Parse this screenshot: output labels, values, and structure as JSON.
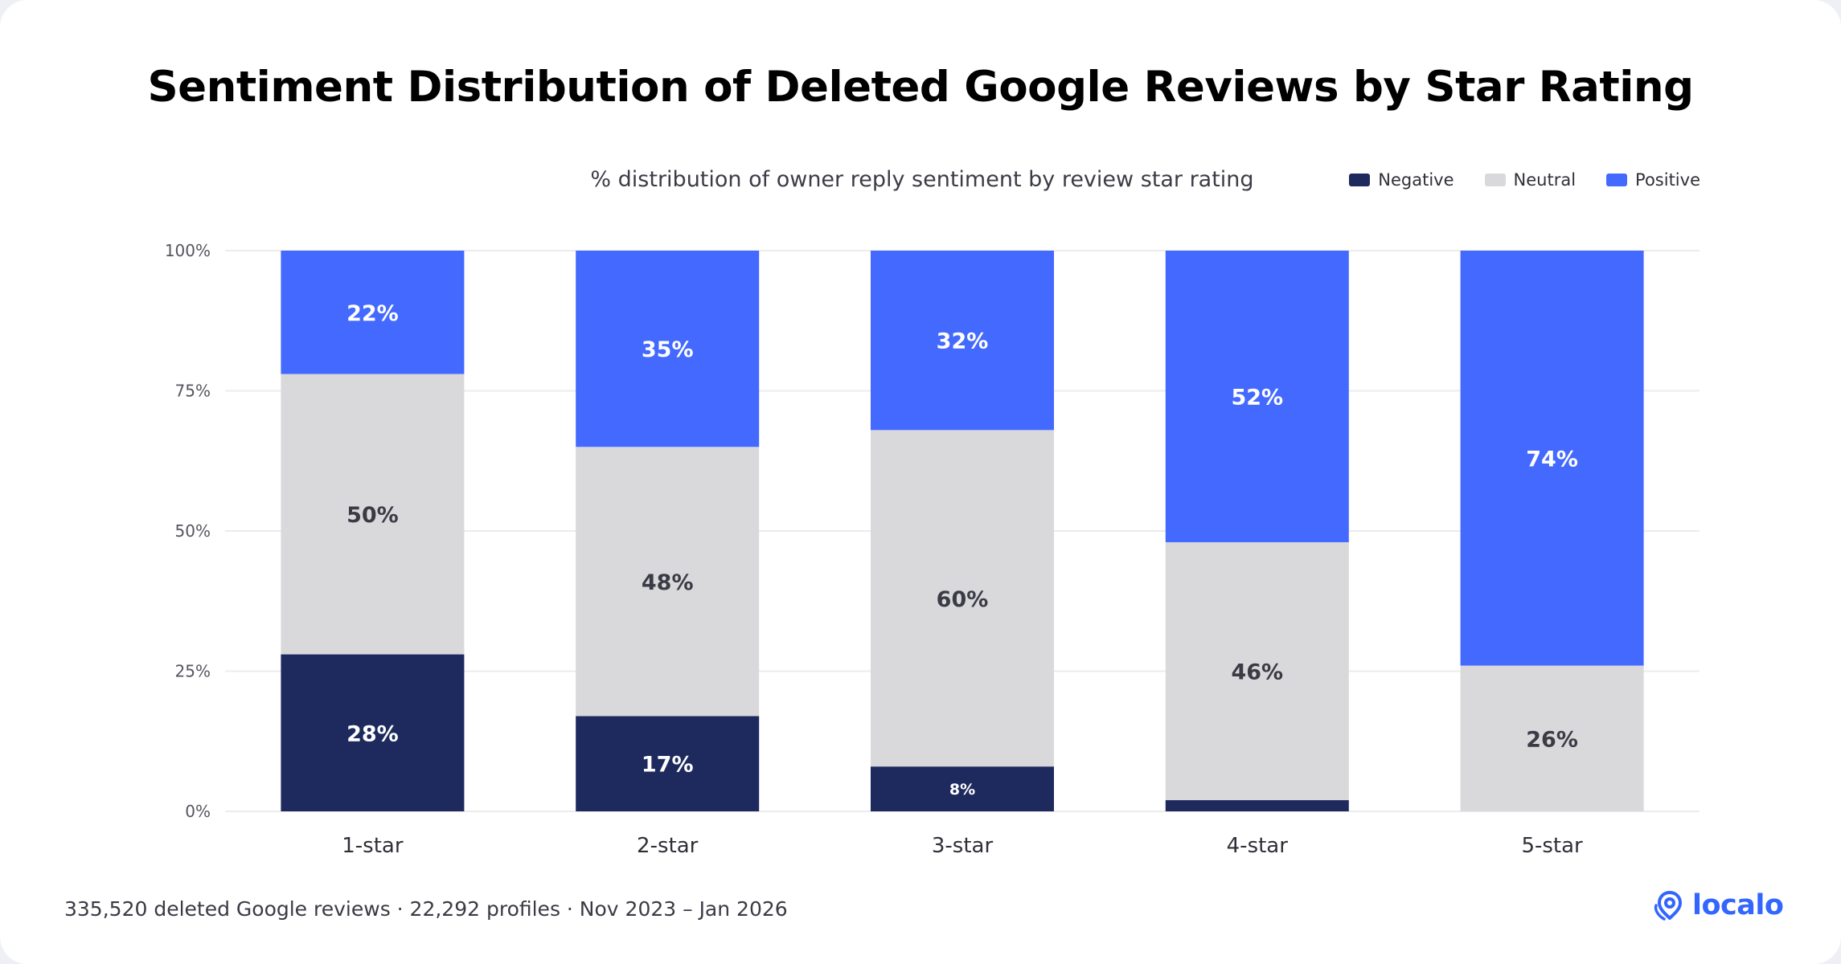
{
  "title": "Sentiment Distribution of Deleted Google Reviews by Star Rating",
  "subtitle": "% distribution of owner reply sentiment by review star rating",
  "footer": "335,520 deleted Google reviews · 22,292 profiles · Nov 2023 – Jan 2026",
  "brand": {
    "name": "localo",
    "icon": "location-pin-icon",
    "color": "#3366ff"
  },
  "legend": [
    {
      "label": "Negative",
      "color": "#1e2a5e"
    },
    {
      "label": "Neutral",
      "color": "#d9d9dc"
    },
    {
      "label": "Positive",
      "color": "#4469ff"
    }
  ],
  "chart_data": {
    "type": "bar",
    "stacked": true,
    "categories": [
      "1-star",
      "2-star",
      "3-star",
      "4-star",
      "5-star"
    ],
    "series": [
      {
        "name": "Negative",
        "color": "#1e2a5e",
        "values": [
          28,
          17,
          8,
          2,
          0
        ],
        "labels": [
          "28%",
          "17%",
          "8%",
          "",
          ""
        ]
      },
      {
        "name": "Neutral",
        "color": "#d9d9dc",
        "values": [
          50,
          48,
          60,
          46,
          26
        ],
        "labels": [
          "50%",
          "48%",
          "60%",
          "46%",
          "26%"
        ]
      },
      {
        "name": "Positive",
        "color": "#4469ff",
        "values": [
          22,
          35,
          32,
          52,
          74
        ],
        "labels": [
          "22%",
          "35%",
          "32%",
          "52%",
          "74%"
        ]
      }
    ],
    "yticks": [
      "0%",
      "25%",
      "50%",
      "75%",
      "100%"
    ],
    "ylim": [
      0,
      100
    ],
    "grid": true,
    "legend_position": "top-right"
  }
}
